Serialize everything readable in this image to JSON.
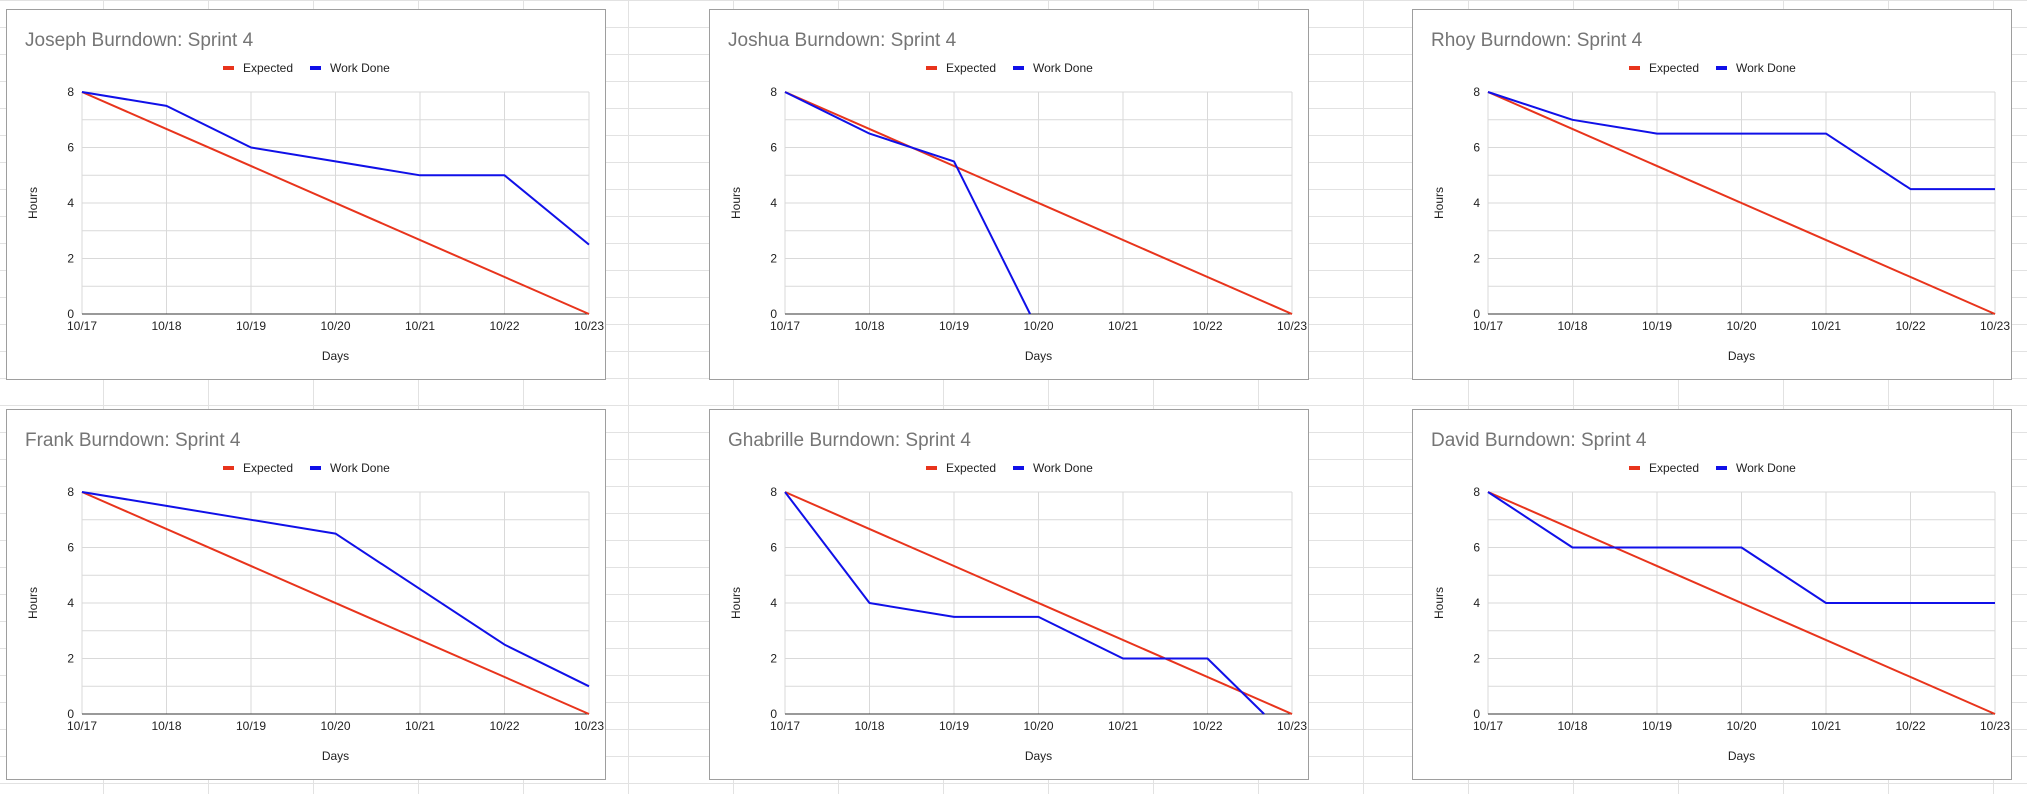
{
  "legend_labels": {
    "expected": "Expected",
    "actual": "Work Done"
  },
  "colors": {
    "expected": "#e8341c",
    "actual": "#1010e8",
    "grid": "#d9d9d9",
    "axis": "#333333",
    "title": "#757575"
  },
  "chart_data": [
    {
      "type": "line",
      "title": "Joseph Burndown: Sprint 4",
      "xlabel": "Days",
      "ylabel": "Hours",
      "categories": [
        "10/17",
        "10/18",
        "10/19",
        "10/20",
        "10/21",
        "10/22",
        "10/23"
      ],
      "ylim": [
        0,
        8
      ],
      "yticks": [
        "0",
        "2",
        "4",
        "6",
        "8"
      ],
      "grid": true,
      "legend": "top-center",
      "series": [
        {
          "name": "Expected",
          "x": [
            0,
            6
          ],
          "values": [
            8,
            0
          ]
        },
        {
          "name": "Work Done",
          "x": [
            0,
            1,
            2,
            3,
            4,
            5,
            6
          ],
          "values": [
            8,
            7.5,
            6,
            5.5,
            5,
            5,
            2.5
          ]
        }
      ]
    },
    {
      "type": "line",
      "title": "Joshua Burndown: Sprint 4",
      "xlabel": "Days",
      "ylabel": "Hours",
      "categories": [
        "10/17",
        "10/18",
        "10/19",
        "10/20",
        "10/21",
        "10/22",
        "10/23"
      ],
      "ylim": [
        0,
        8
      ],
      "yticks": [
        "0",
        "2",
        "4",
        "6",
        "8"
      ],
      "grid": true,
      "legend": "top-center",
      "series": [
        {
          "name": "Expected",
          "x": [
            0,
            6
          ],
          "values": [
            8,
            0
          ]
        },
        {
          "name": "Work Done",
          "x": [
            0,
            1,
            2,
            2.9
          ],
          "values": [
            8,
            6.5,
            5.5,
            0
          ]
        }
      ]
    },
    {
      "type": "line",
      "title": "Rhoy Burndown: Sprint 4",
      "xlabel": "Days",
      "ylabel": "Hours",
      "categories": [
        "10/17",
        "10/18",
        "10/19",
        "10/20",
        "10/21",
        "10/22",
        "10/23"
      ],
      "ylim": [
        0,
        8
      ],
      "yticks": [
        "0",
        "2",
        "4",
        "6",
        "8"
      ],
      "grid": true,
      "legend": "top-center",
      "series": [
        {
          "name": "Expected",
          "x": [
            0,
            6
          ],
          "values": [
            8,
            0
          ]
        },
        {
          "name": "Work Done",
          "x": [
            0,
            1,
            2,
            3,
            4,
            5,
            6
          ],
          "values": [
            8,
            7,
            6.5,
            6.5,
            6.5,
            4.5,
            4.5
          ]
        }
      ]
    },
    {
      "type": "line",
      "title": "Frank Burndown: Sprint 4",
      "xlabel": "Days",
      "ylabel": "Hours",
      "categories": [
        "10/17",
        "10/18",
        "10/19",
        "10/20",
        "10/21",
        "10/22",
        "10/23"
      ],
      "ylim": [
        0,
        8
      ],
      "yticks": [
        "0",
        "2",
        "4",
        "6",
        "8"
      ],
      "grid": true,
      "legend": "top-center",
      "series": [
        {
          "name": "Expected",
          "x": [
            0,
            6
          ],
          "values": [
            8,
            0
          ]
        },
        {
          "name": "Work Done",
          "x": [
            0,
            1,
            2,
            3,
            4,
            5,
            6
          ],
          "values": [
            8,
            7.5,
            7,
            6.5,
            4.5,
            2.5,
            1
          ]
        }
      ]
    },
    {
      "type": "line",
      "title": "Ghabrille Burndown: Sprint 4",
      "xlabel": "Days",
      "ylabel": "Hours",
      "categories": [
        "10/17",
        "10/18",
        "10/19",
        "10/20",
        "10/21",
        "10/22",
        "10/23"
      ],
      "ylim": [
        0,
        8
      ],
      "yticks": [
        "0",
        "2",
        "4",
        "6",
        "8"
      ],
      "grid": true,
      "legend": "top-center",
      "series": [
        {
          "name": "Expected",
          "x": [
            0,
            6
          ],
          "values": [
            8,
            0
          ]
        },
        {
          "name": "Work Done",
          "x": [
            0,
            1,
            2,
            3,
            4,
            5,
            5.67
          ],
          "values": [
            8,
            4,
            3.5,
            3.5,
            2,
            2,
            0
          ]
        }
      ]
    },
    {
      "type": "line",
      "title": "David Burndown: Sprint 4",
      "xlabel": "Days",
      "ylabel": "Hours",
      "categories": [
        "10/17",
        "10/18",
        "10/19",
        "10/20",
        "10/21",
        "10/22",
        "10/23"
      ],
      "ylim": [
        0,
        8
      ],
      "yticks": [
        "0",
        "2",
        "4",
        "6",
        "8"
      ],
      "grid": true,
      "legend": "top-center",
      "series": [
        {
          "name": "Expected",
          "x": [
            0,
            6
          ],
          "values": [
            8,
            0
          ]
        },
        {
          "name": "Work Done",
          "x": [
            0,
            1,
            2,
            3,
            4,
            5,
            6
          ],
          "values": [
            8,
            6,
            6,
            6,
            4,
            4,
            4
          ]
        }
      ]
    }
  ]
}
